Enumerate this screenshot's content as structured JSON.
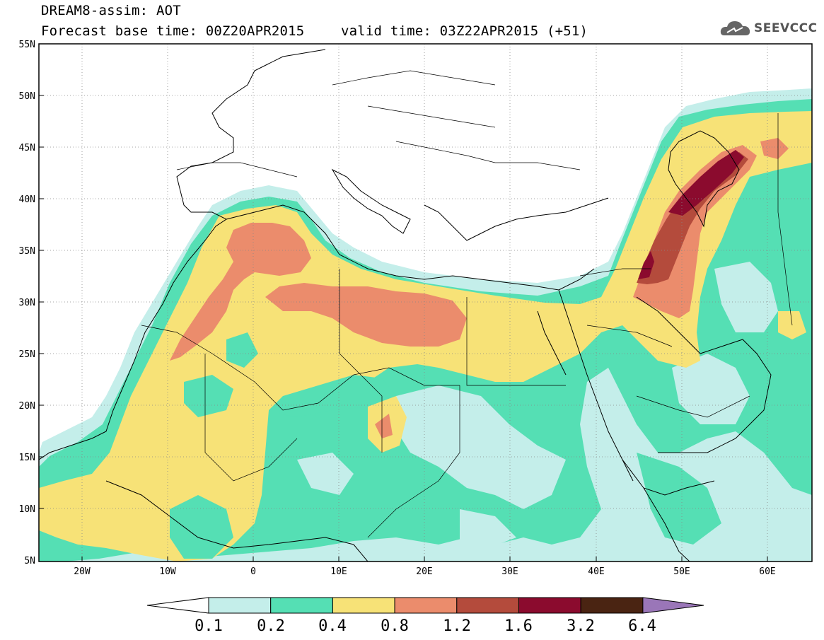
{
  "header": {
    "title_line1": "DREAM8-assim: AOT",
    "title_line2": "Forecast base time: 00Z20APR2015",
    "title_line3": "valid time: 03Z22APR2015 (+51)",
    "logo_text": "SEEVCCC",
    "logo_icon": "cloud-logo-icon"
  },
  "map": {
    "lat_labels": [
      "55N",
      "50N",
      "45N",
      "40N",
      "35N",
      "30N",
      "25N",
      "20N",
      "15N",
      "10N",
      "5N"
    ],
    "lon_labels": [
      "20W",
      "10W",
      "0",
      "10E",
      "20E",
      "30E",
      "40E",
      "50E",
      "60E"
    ],
    "grid": true,
    "region": "North Africa, Mediterranean, Middle East"
  },
  "legend": {
    "labels": [
      "0.1",
      "0.2",
      "0.4",
      "0.8",
      "1.2",
      "1.6",
      "3.2",
      "6.4"
    ],
    "colors": [
      "#ffffff",
      "#c4eeea",
      "#55dfb4",
      "#f7e277",
      "#eb8c6c",
      "#b44b3c",
      "#8b0b2e",
      "#4a2412",
      "#9a76b8"
    ]
  },
  "colors": {
    "level_01": "#c4eeea",
    "level_02": "#55dfb4",
    "level_04": "#f7e277",
    "level_08": "#eb8c6c",
    "level_12": "#b44b3c",
    "level_16": "#8b0b2e",
    "level_32": "#4a2412",
    "level_64": "#9a76b8"
  }
}
